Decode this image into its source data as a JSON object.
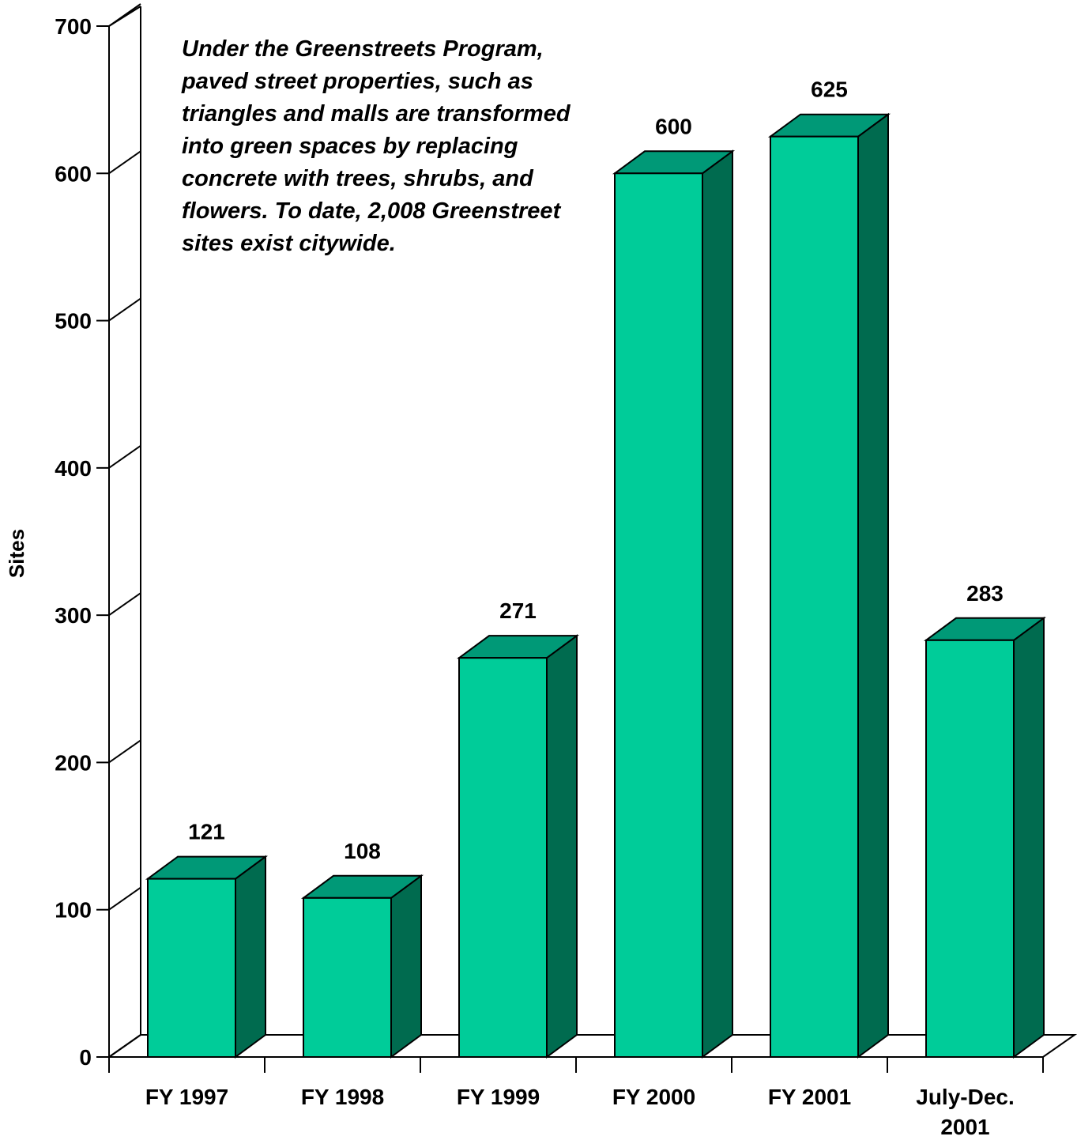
{
  "chart_data": {
    "type": "bar",
    "title": "",
    "xlabel": "",
    "ylabel": "Sites",
    "ylim": [
      0,
      700
    ],
    "yticks": [
      0,
      100,
      200,
      300,
      400,
      500,
      600,
      700
    ],
    "categories": [
      [
        "FY 1997"
      ],
      [
        "FY 1998"
      ],
      [
        "FY 1999"
      ],
      [
        "FY 2000"
      ],
      [
        "FY 2001"
      ],
      [
        "July-Dec.",
        "2001"
      ]
    ],
    "values": [
      121,
      108,
      271,
      600,
      625,
      283
    ],
    "data_labels": [
      "121",
      "108",
      "271",
      "600",
      "625",
      "283"
    ],
    "grid": false,
    "legend": "none",
    "style": "3d-bar",
    "colors": {
      "front": "#00CC99",
      "top": "#009977",
      "side": "#006B4F",
      "outline": "#000000"
    },
    "annotation": "Under the Greenstreets Program,\npaved street properties, such as\ntriangles and malls are transformed\ninto green spaces by replacing\nconcrete with trees, shrubs, and\nflowers. To date, 2,008 Greenstreet\nsites exist citywide."
  }
}
